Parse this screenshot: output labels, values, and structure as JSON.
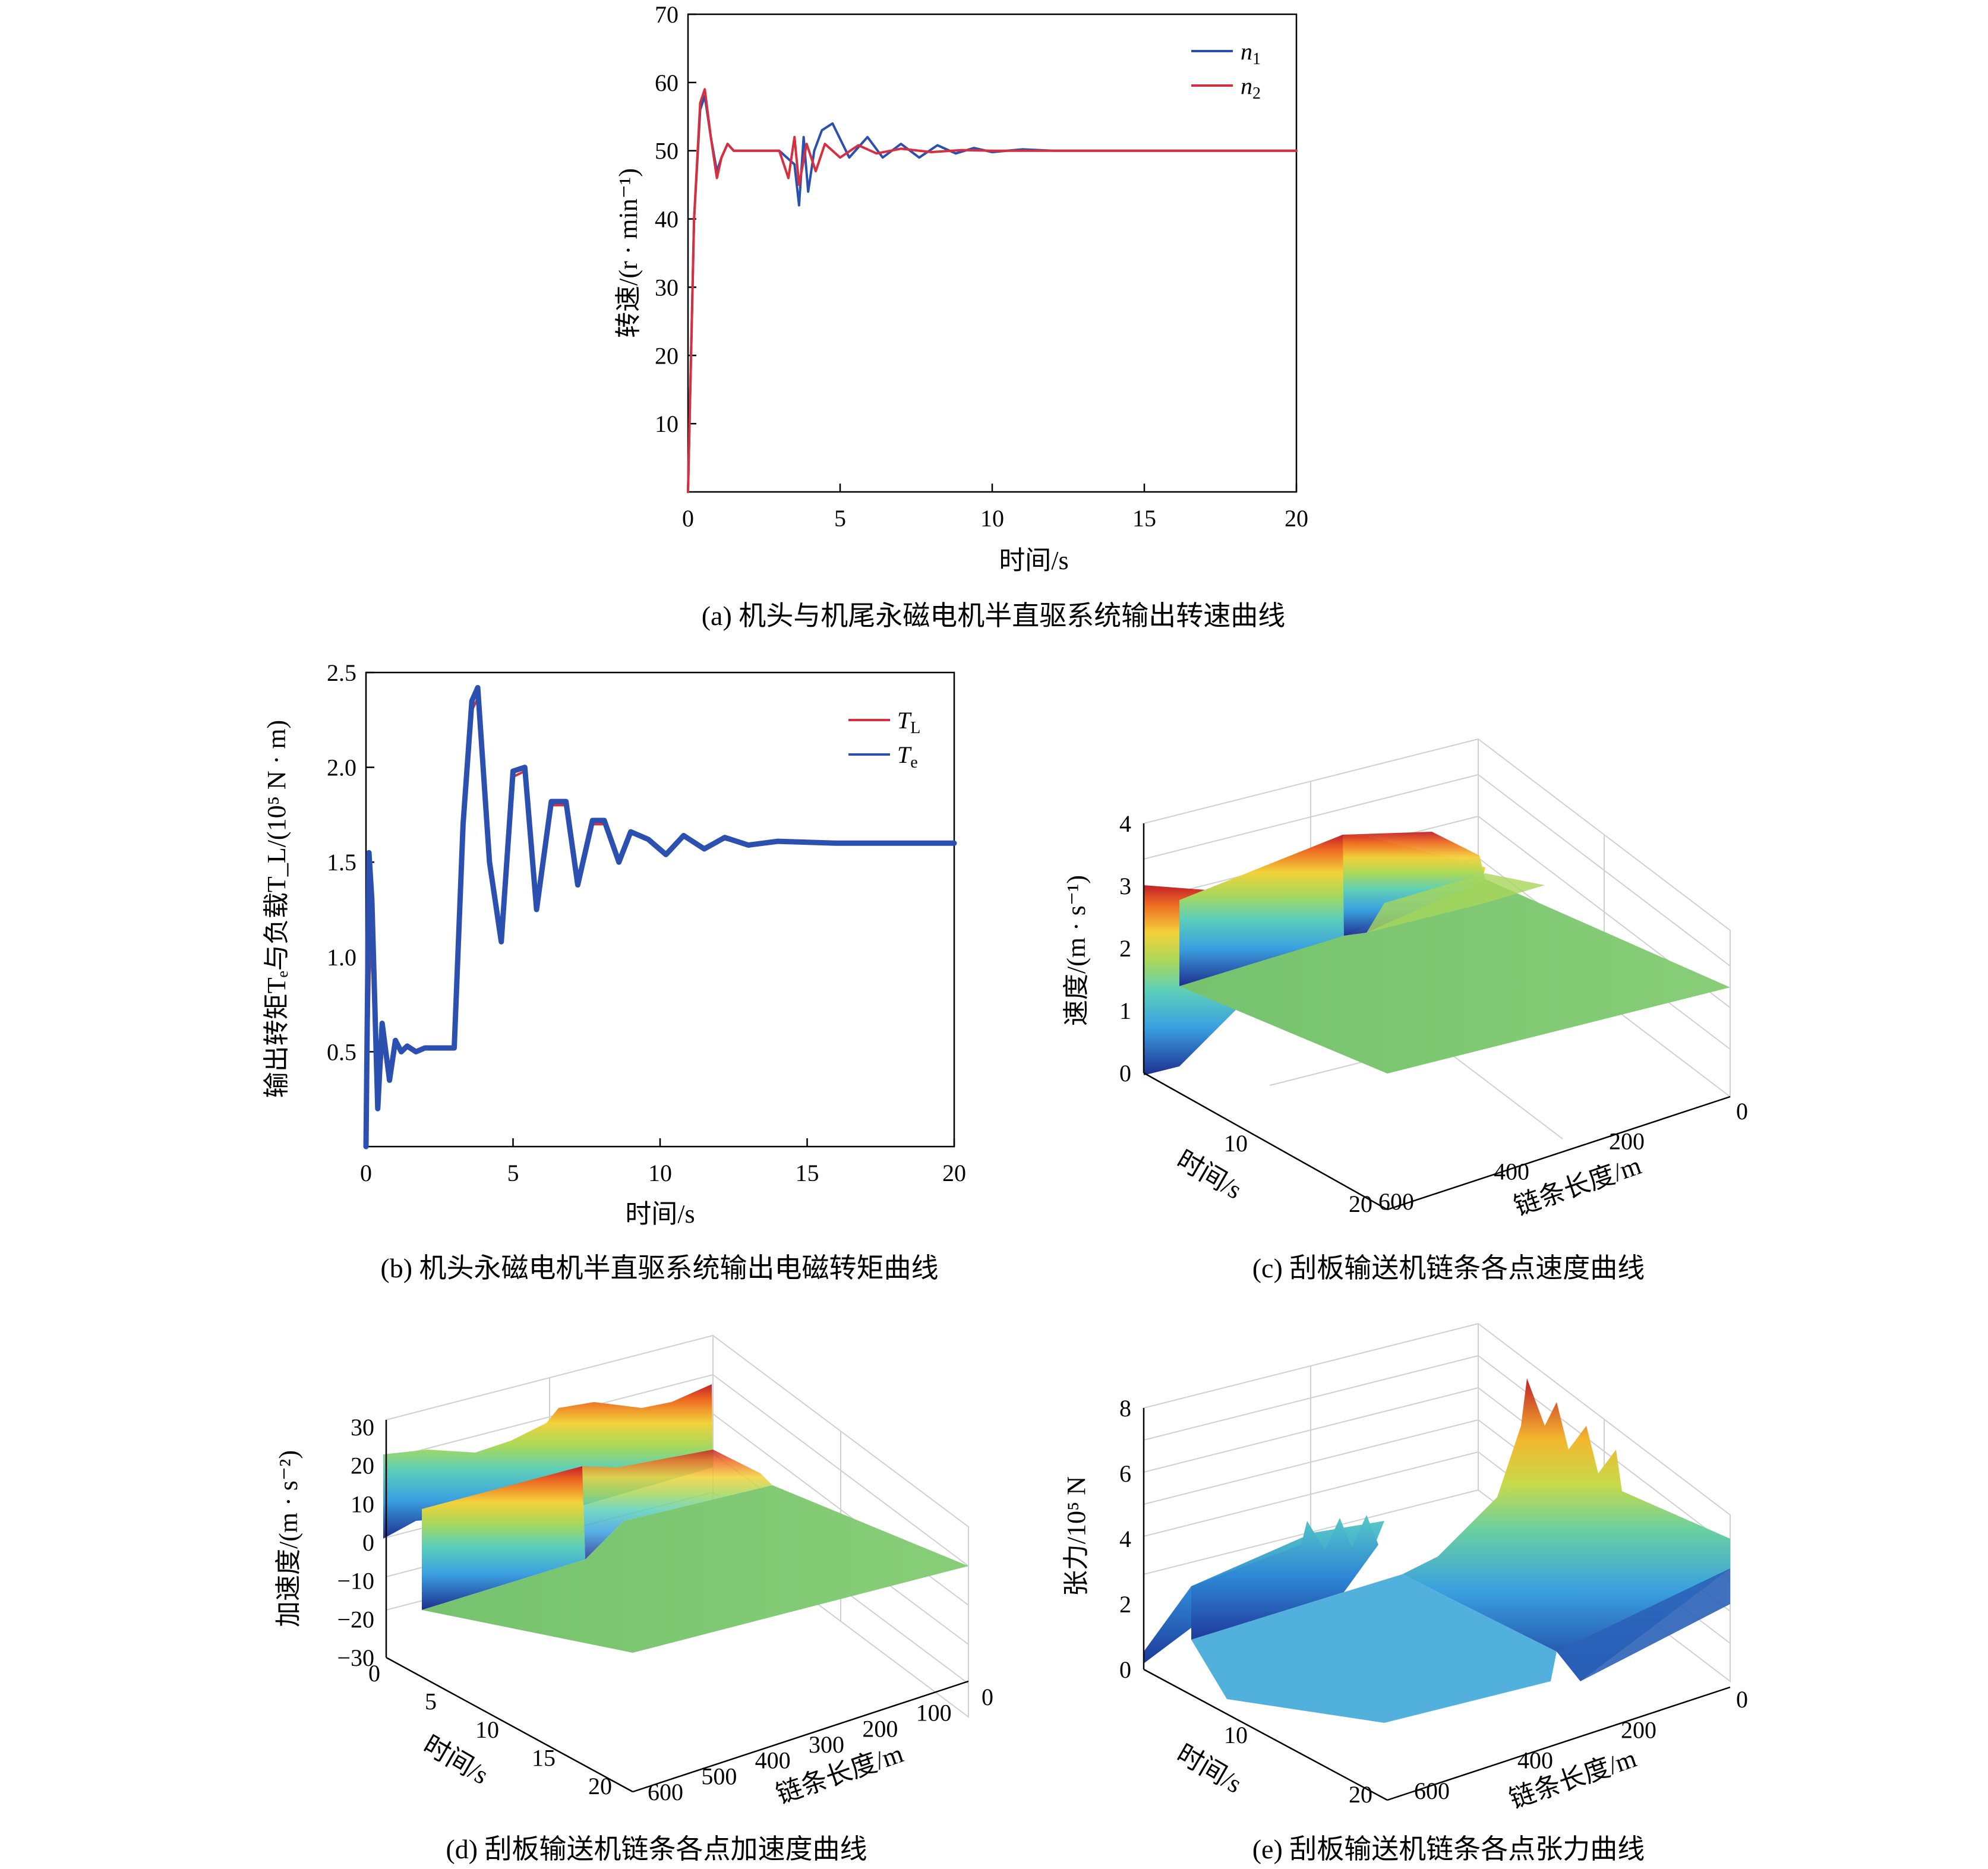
{
  "chart_data": [
    {
      "type": "line",
      "id": "a",
      "caption": "(a) 机头与机尾永磁电机半直驱系统输出转速曲线",
      "xlabel": "时间/s",
      "ylabel": "转速/(r · min⁻¹)",
      "xlim": [
        0,
        20
      ],
      "ylim": [
        0,
        70
      ],
      "xticks": [
        "0",
        "5",
        "10",
        "15",
        "20"
      ],
      "yticks": [
        "10",
        "20",
        "30",
        "40",
        "50",
        "60",
        "70"
      ],
      "legend_position": "top-right",
      "series": [
        {
          "name": "n",
          "sub": "1",
          "color": "#2b50b0",
          "x": [
            0,
            0.2,
            0.4,
            0.55,
            0.75,
            0.95,
            1.1,
            1.3,
            1.5,
            1.8,
            2.2,
            3.0,
            3.5,
            3.65,
            3.8,
            3.95,
            4.15,
            4.4,
            4.75,
            5.3,
            5.9,
            6.4,
            7.0,
            7.6,
            8.2,
            8.8,
            9.4,
            10.0,
            11.0,
            12.0,
            14.0,
            20.0
          ],
          "y": [
            0,
            40,
            56,
            58,
            52,
            47,
            49,
            51,
            50,
            50,
            50,
            50,
            48,
            42,
            52,
            44,
            50,
            53,
            54,
            49,
            52,
            49,
            51,
            49,
            50.8,
            49.6,
            50.4,
            49.8,
            50.2,
            50,
            50,
            50
          ]
        },
        {
          "name": "n",
          "sub": "2",
          "color": "#d63040",
          "x": [
            0,
            0.2,
            0.4,
            0.55,
            0.75,
            0.95,
            1.1,
            1.3,
            1.5,
            1.8,
            2.2,
            3.0,
            3.3,
            3.5,
            3.65,
            3.9,
            4.2,
            4.5,
            5.0,
            5.6,
            6.2,
            7.0,
            8.0,
            9.0,
            10.0,
            20.0
          ],
          "y": [
            0,
            40,
            57,
            59,
            52,
            46,
            49,
            51,
            50,
            50,
            50,
            50,
            46,
            52,
            45,
            51,
            47,
            51,
            49,
            50.8,
            49.6,
            50.3,
            49.8,
            50.1,
            50,
            50
          ]
        }
      ]
    },
    {
      "type": "line",
      "id": "b",
      "caption": "(b) 机头永磁电机半直驱系统输出电磁转矩曲线",
      "xlabel": "时间/s",
      "ylabel": "输出转矩Tₑ与负载T_L/(10⁵ N · m)",
      "xlim": [
        0,
        20
      ],
      "ylim": [
        0,
        2.5
      ],
      "xticks": [
        "0",
        "5",
        "10",
        "15",
        "20"
      ],
      "yticks": [
        "0.5",
        "1.0",
        "1.5",
        "2.0",
        "2.5"
      ],
      "legend_position": "top-right",
      "series": [
        {
          "name": "T",
          "sub": "L",
          "color": "#d63040",
          "x": [
            0,
            0.15,
            0.3,
            0.45,
            0.6,
            0.8,
            1.0,
            1.2,
            1.4,
            1.7,
            2.0,
            3.0,
            3.3,
            3.6,
            3.85,
            4.2,
            4.6,
            5.0,
            5.4,
            5.8,
            6.3,
            6.8,
            7.2,
            7.7,
            8.1,
            8.6,
            9.0,
            9.6,
            10.2,
            10.8,
            11.5,
            12.2,
            13.0,
            14.0,
            16.0,
            20.0
          ],
          "y": [
            0,
            1.1,
            0.7,
            0.25,
            0.6,
            0.4,
            0.55,
            0.5,
            0.52,
            0.5,
            0.52,
            0.52,
            1.6,
            2.3,
            2.38,
            1.55,
            1.12,
            1.95,
            1.98,
            1.3,
            1.8,
            1.8,
            1.4,
            1.7,
            1.7,
            1.5,
            1.65,
            1.62,
            1.55,
            1.63,
            1.58,
            1.62,
            1.59,
            1.61,
            1.6,
            1.6
          ]
        },
        {
          "name": "T",
          "sub": "e",
          "color": "#2b50b0",
          "x": [
            0,
            0.1,
            0.2,
            0.4,
            0.55,
            0.8,
            1.0,
            1.2,
            1.4,
            1.7,
            2.0,
            3.0,
            3.3,
            3.6,
            3.8,
            4.2,
            4.6,
            5.0,
            5.4,
            5.8,
            6.3,
            6.8,
            7.2,
            7.7,
            8.1,
            8.6,
            9.0,
            9.6,
            10.2,
            10.8,
            11.5,
            12.2,
            13.0,
            14.0,
            16.0,
            20.0
          ],
          "y": [
            0,
            1.55,
            1.3,
            0.2,
            0.65,
            0.35,
            0.56,
            0.5,
            0.53,
            0.5,
            0.52,
            0.52,
            1.7,
            2.35,
            2.42,
            1.5,
            1.08,
            1.98,
            2.0,
            1.25,
            1.82,
            1.82,
            1.38,
            1.72,
            1.72,
            1.5,
            1.66,
            1.62,
            1.54,
            1.64,
            1.57,
            1.63,
            1.59,
            1.61,
            1.6,
            1.6
          ]
        }
      ]
    },
    {
      "type": "surface",
      "id": "c",
      "caption": "(c) 刮板输送机链条各点速度曲线",
      "zlabel": "速度/(m · s⁻¹)",
      "xlabel": "时间/s",
      "ylabel": "链条长度/m",
      "zticks": [
        "0",
        "1",
        "2",
        "3",
        "4"
      ],
      "time_ticks": [
        "10",
        "20"
      ],
      "length_ticks": [
        "0",
        "200",
        "400",
        "600"
      ]
    },
    {
      "type": "surface",
      "id": "d",
      "caption": "(d) 刮板输送机链条各点加速度曲线",
      "zlabel": "加速度/(m · s⁻²)",
      "xlabel": "时间/s",
      "ylabel": "链条长度/m",
      "zticks": [
        "30",
        "20",
        "10",
        "0",
        "−10",
        "−20",
        "−30"
      ],
      "time_ticks": [
        "0",
        "5",
        "10",
        "15",
        "20"
      ],
      "length_ticks": [
        "0",
        "100",
        "200",
        "300",
        "400",
        "500",
        "600"
      ]
    },
    {
      "type": "surface",
      "id": "e",
      "caption": "(e) 刮板输送机链条各点张力曲线",
      "zlabel": "张力/10⁵ N",
      "xlabel": "时间/s",
      "ylabel": "链条长度/m",
      "zticks": [
        "0",
        "2",
        "4",
        "6",
        "8"
      ],
      "time_ticks": [
        "10",
        "20"
      ],
      "length_ticks": [
        "0",
        "200",
        "400",
        "600"
      ]
    }
  ]
}
